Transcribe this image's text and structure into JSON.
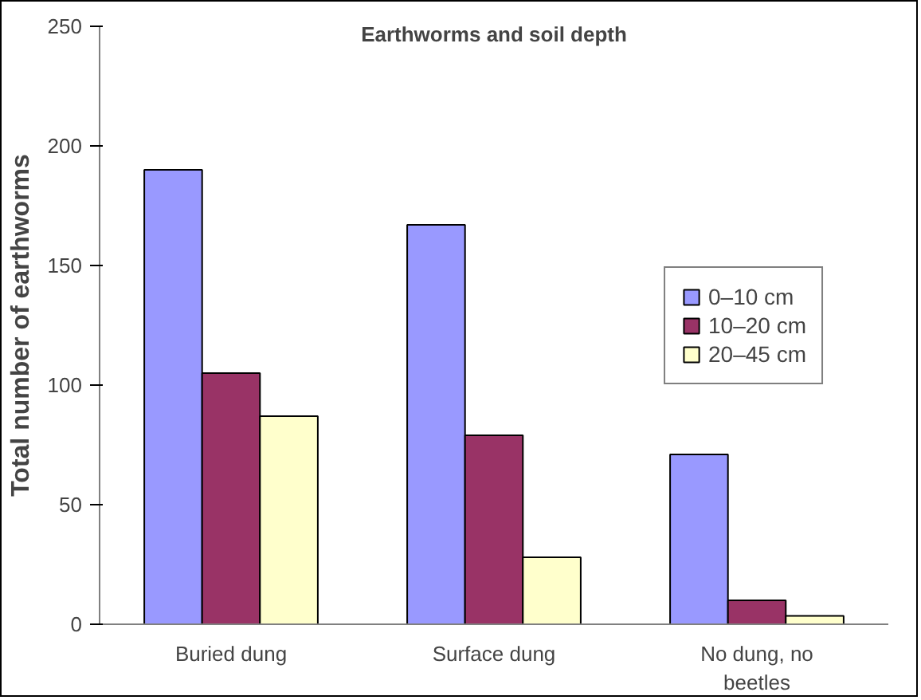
{
  "chart_data": {
    "type": "bar",
    "title": "Earthworms and soil depth",
    "ylabel": "Total number of earthworms",
    "categories": [
      "Buried dung",
      "Surface dung",
      "No dung, no beetles"
    ],
    "series": [
      {
        "name": "0–10 cm",
        "color": "#9999ff",
        "values": [
          190,
          167,
          71
        ]
      },
      {
        "name": "10–20 cm",
        "color": "#993366",
        "values": [
          105,
          79,
          10
        ]
      },
      {
        "name": "20–45 cm",
        "color": "#ffffcc",
        "values": [
          87,
          28,
          3.5
        ]
      }
    ],
    "ylim": [
      0,
      250
    ],
    "yticks": [
      0,
      50,
      100,
      150,
      200,
      250
    ],
    "grid": false,
    "legend": "right"
  }
}
